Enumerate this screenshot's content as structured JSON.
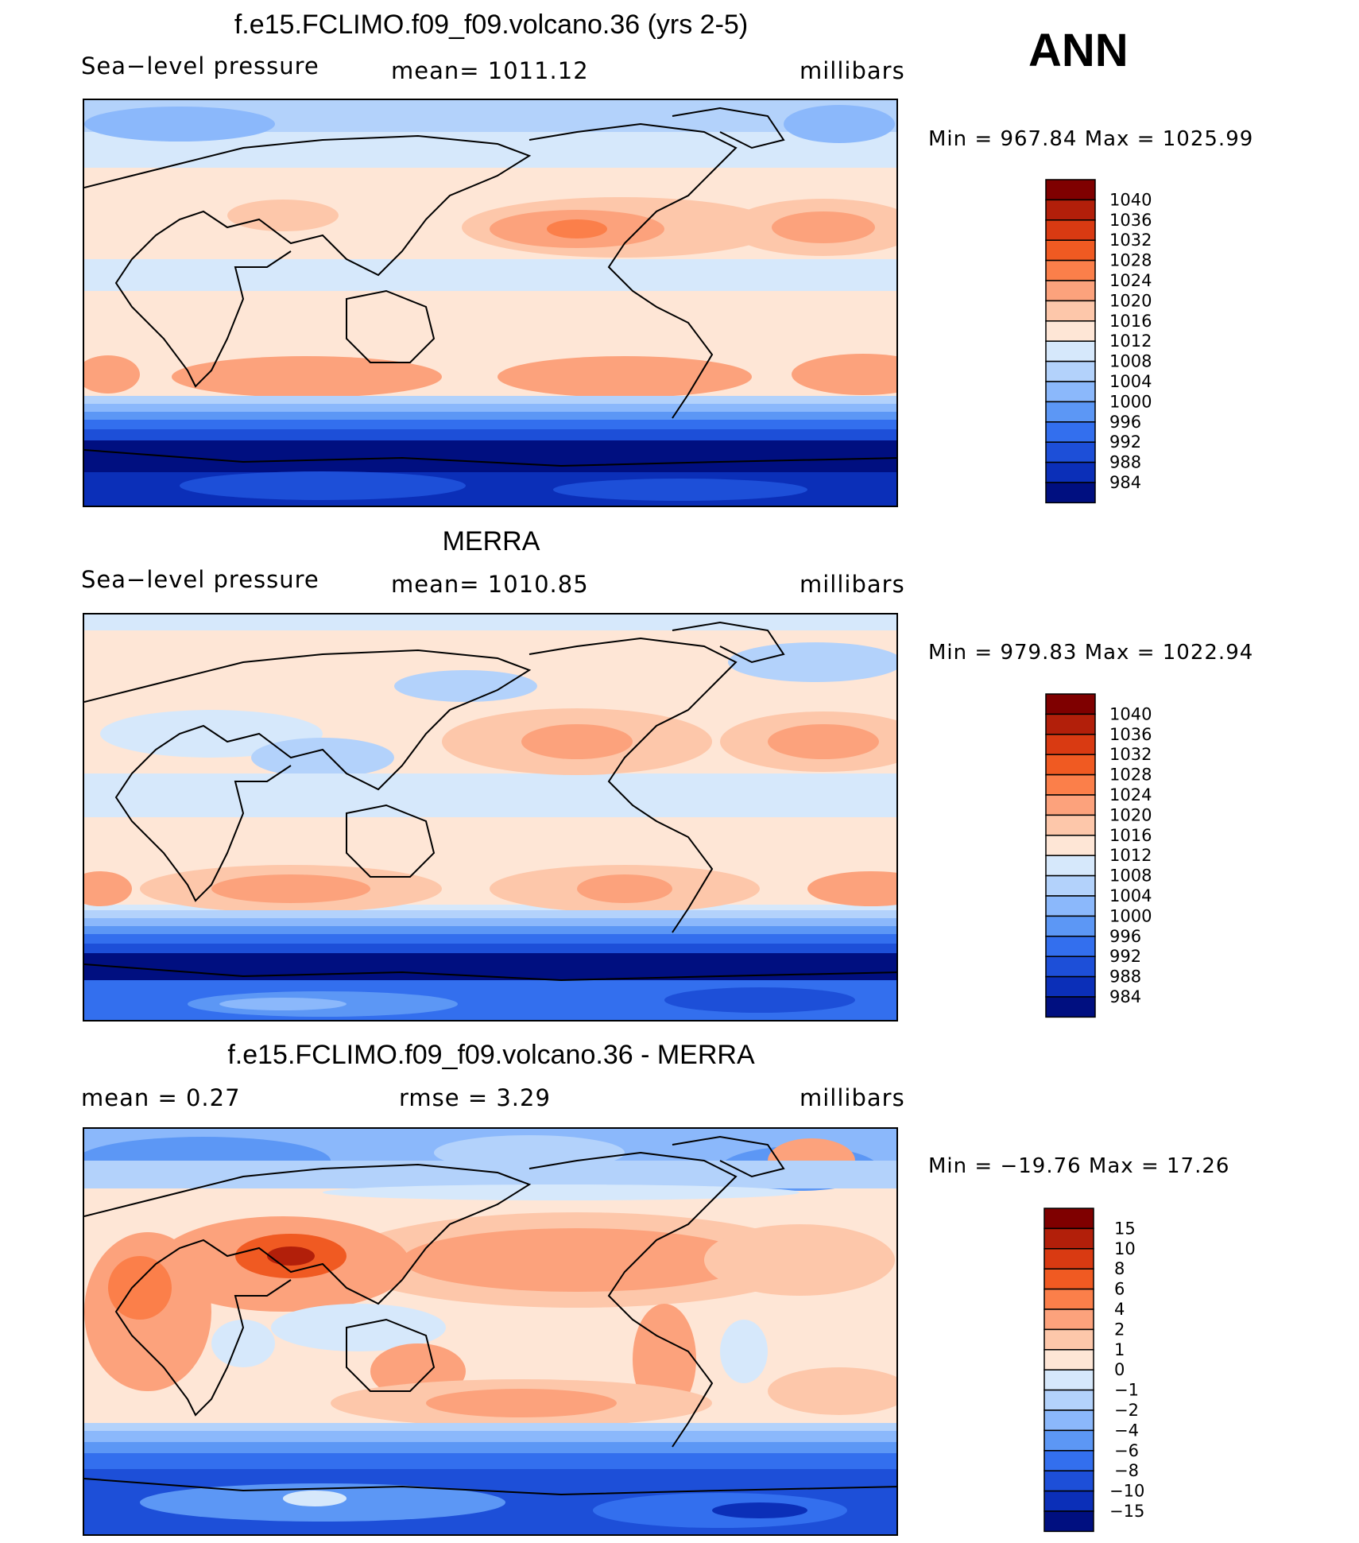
{
  "season": "ANN",
  "panels": [
    {
      "title": "f.e15.FCLIMO.f09_f09.volcano.36 (yrs 2-5)",
      "left_label": "Sea−level pressure",
      "center_label": "mean=  1011.12",
      "right_label": "millibars",
      "minmax": "Min  =  967.84  Max  =  1025.99",
      "levels": [
        "1040",
        "1036",
        "1032",
        "1028",
        "1024",
        "1020",
        "1016",
        "1012",
        "1008",
        "1004",
        "1000",
        "996",
        "992",
        "988",
        "984"
      ],
      "colors": [
        "#7f0000",
        "#b21f0a",
        "#d93a12",
        "#f05a22",
        "#fb7f4a",
        "#fca27c",
        "#fdc7aa",
        "#fee6d6",
        "#d6e8fb",
        "#b3d2fb",
        "#8bb8fb",
        "#5c97f5",
        "#336fee",
        "#1d4fd8",
        "#0b2fb8",
        "#000f80"
      ]
    },
    {
      "title": "MERRA",
      "left_label": "Sea−level pressure",
      "center_label": "mean=  1010.85",
      "right_label": "millibars",
      "minmax": "Min  =  979.83  Max  =  1022.94",
      "levels": [
        "1040",
        "1036",
        "1032",
        "1028",
        "1024",
        "1020",
        "1016",
        "1012",
        "1008",
        "1004",
        "1000",
        "996",
        "992",
        "988",
        "984"
      ],
      "colors": [
        "#7f0000",
        "#b21f0a",
        "#d93a12",
        "#f05a22",
        "#fb7f4a",
        "#fca27c",
        "#fdc7aa",
        "#fee6d6",
        "#d6e8fb",
        "#b3d2fb",
        "#8bb8fb",
        "#5c97f5",
        "#336fee",
        "#1d4fd8",
        "#0b2fb8",
        "#000f80"
      ]
    },
    {
      "title": "f.e15.FCLIMO.f09_f09.volcano.36 - MERRA",
      "left_label": "mean  =      0.27",
      "center_label": "rmse  =      3.29",
      "right_label": "millibars",
      "minmax": "Min  =  −19.76  Max  =     17.26",
      "levels": [
        "15",
        "10",
        "8",
        "6",
        "4",
        "2",
        "1",
        "0",
        "−1",
        "−2",
        "−4",
        "−6",
        "−8",
        "−10",
        "−15"
      ],
      "colors": [
        "#7f0000",
        "#b21f0a",
        "#d93a12",
        "#f05a22",
        "#fb7f4a",
        "#fca27c",
        "#fdc7aa",
        "#fee6d6",
        "#d6e8fb",
        "#b3d2fb",
        "#8bb8fb",
        "#5c97f5",
        "#336fee",
        "#1d4fd8",
        "#0b2fb8",
        "#000f80"
      ]
    }
  ]
}
